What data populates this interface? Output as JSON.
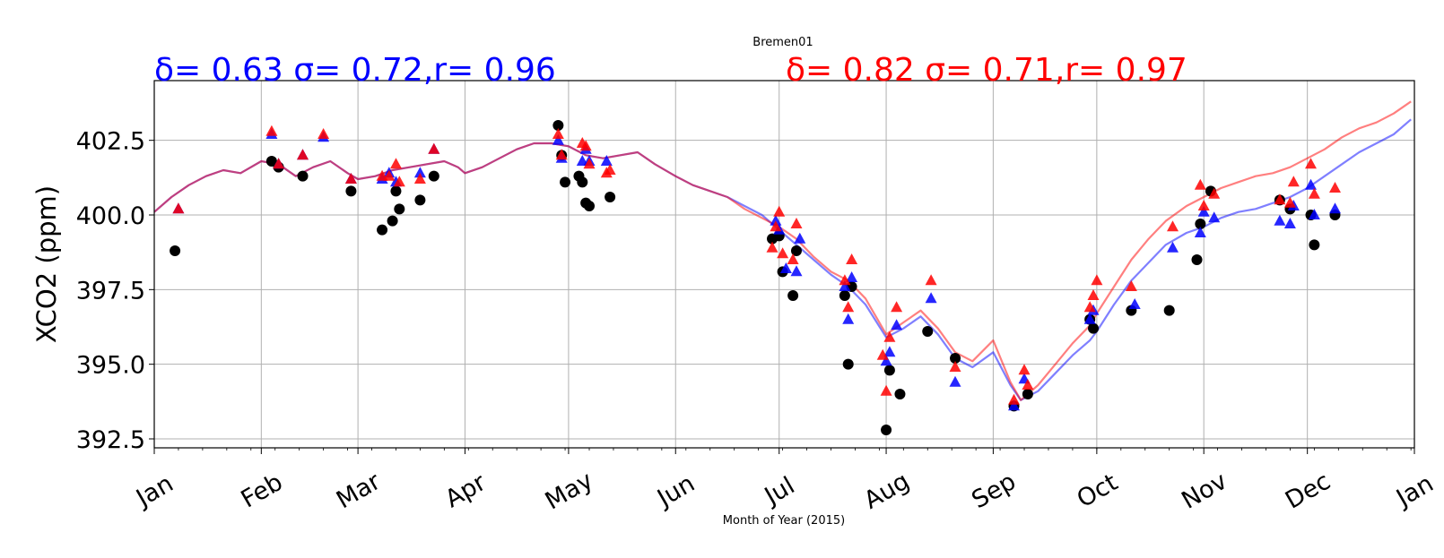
{
  "chart_data": {
    "type": "line",
    "title": "Bremen01",
    "xlabel": "Month of Year (2015)",
    "ylabel": "XCO2 (ppm)",
    "ylim": [
      392.2,
      404.5
    ],
    "xlim_days": [
      0,
      365
    ],
    "grid": true,
    "yticks": [
      {
        "value": 392.5,
        "label": "392.5"
      },
      {
        "value": 395.0,
        "label": "395.0"
      },
      {
        "value": 397.5,
        "label": "397.5"
      },
      {
        "value": 400.0,
        "label": "400.0"
      },
      {
        "value": 402.5,
        "label": "402.5"
      }
    ],
    "xticks": [
      {
        "day": 0,
        "label": "Jan"
      },
      {
        "day": 31,
        "label": "Feb"
      },
      {
        "day": 59,
        "label": "Mar"
      },
      {
        "day": 90,
        "label": "Apr"
      },
      {
        "day": 120,
        "label": "May"
      },
      {
        "day": 151,
        "label": "Jun"
      },
      {
        "day": 181,
        "label": "Jul"
      },
      {
        "day": 212,
        "label": "Aug"
      },
      {
        "day": 243,
        "label": "Sep"
      },
      {
        "day": 273,
        "label": "Oct"
      },
      {
        "day": 304,
        "label": "Nov"
      },
      {
        "day": 334,
        "label": "Dec"
      },
      {
        "day": 365,
        "label": "Jan"
      }
    ],
    "annotations": [
      {
        "text": "δ= 0.63 σ= 0.72,r= 0.96",
        "color": "#0000ff"
      },
      {
        "text": "δ= 0.82 σ= 0.71,r= 0.97",
        "color": "#ff0000"
      }
    ],
    "series": [
      {
        "style": "line",
        "color": "#0000ff",
        "alpha": 0.5,
        "points": [
          [
            0,
            400.1
          ],
          [
            5,
            400.6
          ],
          [
            10,
            401.0
          ],
          [
            15,
            401.3
          ],
          [
            20,
            401.5
          ],
          [
            25,
            401.4
          ],
          [
            31,
            401.8
          ],
          [
            36,
            401.7
          ],
          [
            41,
            401.3
          ],
          [
            46,
            401.6
          ],
          [
            51,
            401.8
          ],
          [
            56,
            401.4
          ],
          [
            59,
            401.2
          ],
          [
            64,
            401.3
          ],
          [
            69,
            401.5
          ],
          [
            74,
            401.6
          ],
          [
            79,
            401.7
          ],
          [
            84,
            401.8
          ],
          [
            88,
            401.6
          ],
          [
            90,
            401.4
          ],
          [
            95,
            401.6
          ],
          [
            100,
            401.9
          ],
          [
            105,
            402.2
          ],
          [
            110,
            402.4
          ],
          [
            115,
            402.4
          ],
          [
            120,
            402.3
          ],
          [
            125,
            402.0
          ],
          [
            130,
            401.9
          ],
          [
            135,
            402.0
          ],
          [
            140,
            402.1
          ],
          [
            145,
            401.7
          ],
          [
            151,
            401.3
          ],
          [
            156,
            401.0
          ],
          [
            161,
            400.8
          ],
          [
            166,
            400.6
          ],
          [
            171,
            400.3
          ],
          [
            176,
            400.0
          ],
          [
            181,
            399.5
          ],
          [
            186,
            399.0
          ],
          [
            191,
            398.5
          ],
          [
            196,
            398.0
          ],
          [
            201,
            397.6
          ],
          [
            206,
            397.0
          ],
          [
            212,
            395.9
          ],
          [
            217,
            396.2
          ],
          [
            222,
            396.6
          ],
          [
            227,
            396.0
          ],
          [
            232,
            395.2
          ],
          [
            237,
            394.9
          ],
          [
            243,
            395.4
          ],
          [
            248,
            394.3
          ],
          [
            251,
            393.8
          ],
          [
            256,
            394.1
          ],
          [
            261,
            394.7
          ],
          [
            266,
            395.3
          ],
          [
            271,
            395.8
          ],
          [
            273,
            396.1
          ],
          [
            278,
            397.0
          ],
          [
            283,
            397.8
          ],
          [
            288,
            398.4
          ],
          [
            293,
            399.0
          ],
          [
            299,
            399.4
          ],
          [
            304,
            399.6
          ],
          [
            309,
            399.9
          ],
          [
            314,
            400.1
          ],
          [
            319,
            400.2
          ],
          [
            324,
            400.4
          ],
          [
            329,
            400.6
          ],
          [
            334,
            400.9
          ],
          [
            339,
            401.3
          ],
          [
            344,
            401.7
          ],
          [
            349,
            402.1
          ],
          [
            354,
            402.4
          ],
          [
            359,
            402.7
          ],
          [
            364,
            403.2
          ]
        ]
      },
      {
        "style": "line",
        "color": "#ff0000",
        "alpha": 0.5,
        "points": [
          [
            0,
            400.1
          ],
          [
            5,
            400.6
          ],
          [
            10,
            401.0
          ],
          [
            15,
            401.3
          ],
          [
            20,
            401.5
          ],
          [
            25,
            401.4
          ],
          [
            31,
            401.8
          ],
          [
            36,
            401.7
          ],
          [
            41,
            401.3
          ],
          [
            46,
            401.6
          ],
          [
            51,
            401.8
          ],
          [
            56,
            401.4
          ],
          [
            59,
            401.2
          ],
          [
            64,
            401.3
          ],
          [
            69,
            401.5
          ],
          [
            74,
            401.6
          ],
          [
            79,
            401.7
          ],
          [
            84,
            401.8
          ],
          [
            88,
            401.6
          ],
          [
            90,
            401.4
          ],
          [
            95,
            401.6
          ],
          [
            100,
            401.9
          ],
          [
            105,
            402.2
          ],
          [
            110,
            402.4
          ],
          [
            115,
            402.4
          ],
          [
            120,
            402.3
          ],
          [
            125,
            402.0
          ],
          [
            130,
            401.9
          ],
          [
            135,
            402.0
          ],
          [
            140,
            402.1
          ],
          [
            145,
            401.7
          ],
          [
            151,
            401.3
          ],
          [
            156,
            401.0
          ],
          [
            161,
            400.8
          ],
          [
            166,
            400.6
          ],
          [
            171,
            400.2
          ],
          [
            176,
            399.9
          ],
          [
            181,
            399.6
          ],
          [
            186,
            399.2
          ],
          [
            191,
            398.6
          ],
          [
            196,
            398.1
          ],
          [
            201,
            397.8
          ],
          [
            206,
            397.2
          ],
          [
            212,
            396.0
          ],
          [
            217,
            396.4
          ],
          [
            222,
            396.8
          ],
          [
            227,
            396.2
          ],
          [
            232,
            395.4
          ],
          [
            237,
            395.1
          ],
          [
            243,
            395.8
          ],
          [
            248,
            394.4
          ],
          [
            251,
            393.8
          ],
          [
            256,
            394.3
          ],
          [
            261,
            395.0
          ],
          [
            266,
            395.7
          ],
          [
            271,
            396.3
          ],
          [
            273,
            396.7
          ],
          [
            278,
            397.6
          ],
          [
            283,
            398.5
          ],
          [
            288,
            399.2
          ],
          [
            293,
            399.8
          ],
          [
            299,
            400.3
          ],
          [
            304,
            400.6
          ],
          [
            309,
            400.9
          ],
          [
            314,
            401.1
          ],
          [
            319,
            401.3
          ],
          [
            324,
            401.4
          ],
          [
            329,
            401.6
          ],
          [
            334,
            401.9
          ],
          [
            339,
            402.2
          ],
          [
            344,
            402.6
          ],
          [
            349,
            402.9
          ],
          [
            354,
            403.1
          ],
          [
            359,
            403.4
          ],
          [
            364,
            403.8
          ]
        ]
      },
      {
        "style": "marker-circle",
        "color": "#000000",
        "points": [
          [
            6,
            398.8
          ],
          [
            34,
            401.8
          ],
          [
            36,
            401.6
          ],
          [
            43,
            401.3
          ],
          [
            57,
            400.8
          ],
          [
            66,
            399.5
          ],
          [
            69,
            399.8
          ],
          [
            70,
            400.8
          ],
          [
            71,
            400.2
          ],
          [
            77,
            400.5
          ],
          [
            81,
            401.3
          ],
          [
            117,
            403.0
          ],
          [
            118,
            402.0
          ],
          [
            119,
            401.1
          ],
          [
            123,
            401.3
          ],
          [
            124,
            401.1
          ],
          [
            125,
            400.4
          ],
          [
            126,
            400.3
          ],
          [
            132,
            400.6
          ],
          [
            179,
            399.2
          ],
          [
            181,
            399.3
          ],
          [
            182,
            398.1
          ],
          [
            185,
            397.3
          ],
          [
            186,
            398.8
          ],
          [
            200,
            397.3
          ],
          [
            201,
            395.0
          ],
          [
            202,
            397.6
          ],
          [
            212,
            392.8
          ],
          [
            213,
            394.8
          ],
          [
            216,
            394.0
          ],
          [
            224,
            396.1
          ],
          [
            232,
            395.2
          ],
          [
            249,
            393.6
          ],
          [
            253,
            394.0
          ],
          [
            271,
            396.5
          ],
          [
            272,
            396.2
          ],
          [
            283,
            396.8
          ],
          [
            294,
            396.8
          ],
          [
            302,
            398.5
          ],
          [
            303,
            399.7
          ],
          [
            306,
            400.8
          ],
          [
            326,
            400.5
          ],
          [
            329,
            400.2
          ],
          [
            335,
            400.0
          ],
          [
            336,
            399.0
          ],
          [
            342,
            400.0
          ]
        ]
      },
      {
        "style": "marker-triangle",
        "color": "#0000ff",
        "points": [
          [
            7,
            400.2
          ],
          [
            34,
            402.7
          ],
          [
            36,
            401.7
          ],
          [
            43,
            402.0
          ],
          [
            49,
            402.6
          ],
          [
            57,
            401.2
          ],
          [
            66,
            401.2
          ],
          [
            68,
            401.4
          ],
          [
            70,
            401.1
          ],
          [
            77,
            401.4
          ],
          [
            81,
            402.2
          ],
          [
            117,
            402.5
          ],
          [
            118,
            401.9
          ],
          [
            124,
            401.8
          ],
          [
            125,
            402.2
          ],
          [
            126,
            401.8
          ],
          [
            131,
            401.8
          ],
          [
            180,
            399.8
          ],
          [
            181,
            399.5
          ],
          [
            183,
            398.2
          ],
          [
            186,
            398.1
          ],
          [
            187,
            399.2
          ],
          [
            200,
            397.6
          ],
          [
            201,
            396.5
          ],
          [
            202,
            397.9
          ],
          [
            212,
            395.1
          ],
          [
            213,
            395.4
          ],
          [
            215,
            396.3
          ],
          [
            225,
            397.2
          ],
          [
            232,
            394.4
          ],
          [
            249,
            393.6
          ],
          [
            252,
            394.5
          ],
          [
            271,
            396.5
          ],
          [
            272,
            396.8
          ],
          [
            284,
            397.0
          ],
          [
            295,
            398.9
          ],
          [
            303,
            399.4
          ],
          [
            304,
            400.1
          ],
          [
            307,
            399.9
          ],
          [
            326,
            399.8
          ],
          [
            329,
            399.7
          ],
          [
            330,
            400.3
          ],
          [
            335,
            401.0
          ],
          [
            336,
            400.0
          ],
          [
            342,
            400.2
          ]
        ]
      },
      {
        "style": "marker-triangle",
        "color": "#ff0000",
        "points": [
          [
            7,
            400.2
          ],
          [
            34,
            402.8
          ],
          [
            36,
            401.7
          ],
          [
            43,
            402.0
          ],
          [
            49,
            402.7
          ],
          [
            57,
            401.2
          ],
          [
            66,
            401.3
          ],
          [
            68,
            401.3
          ],
          [
            70,
            401.7
          ],
          [
            71,
            401.1
          ],
          [
            77,
            401.2
          ],
          [
            81,
            402.2
          ],
          [
            117,
            402.7
          ],
          [
            118,
            402.0
          ],
          [
            124,
            402.4
          ],
          [
            125,
            402.3
          ],
          [
            126,
            401.7
          ],
          [
            131,
            401.4
          ],
          [
            132,
            401.5
          ],
          [
            179,
            398.9
          ],
          [
            180,
            399.6
          ],
          [
            181,
            400.1
          ],
          [
            182,
            398.7
          ],
          [
            185,
            398.5
          ],
          [
            186,
            399.7
          ],
          [
            200,
            397.8
          ],
          [
            201,
            396.9
          ],
          [
            202,
            398.5
          ],
          [
            211,
            395.3
          ],
          [
            212,
            394.1
          ],
          [
            213,
            395.9
          ],
          [
            215,
            396.9
          ],
          [
            225,
            397.8
          ],
          [
            232,
            394.9
          ],
          [
            249,
            393.8
          ],
          [
            252,
            394.8
          ],
          [
            253,
            394.3
          ],
          [
            271,
            396.9
          ],
          [
            272,
            397.3
          ],
          [
            273,
            397.8
          ],
          [
            283,
            397.6
          ],
          [
            295,
            399.6
          ],
          [
            303,
            401.0
          ],
          [
            304,
            400.3
          ],
          [
            307,
            400.7
          ],
          [
            326,
            400.5
          ],
          [
            329,
            400.4
          ],
          [
            330,
            401.1
          ],
          [
            335,
            401.7
          ],
          [
            336,
            400.7
          ],
          [
            342,
            400.9
          ]
        ]
      }
    ]
  }
}
